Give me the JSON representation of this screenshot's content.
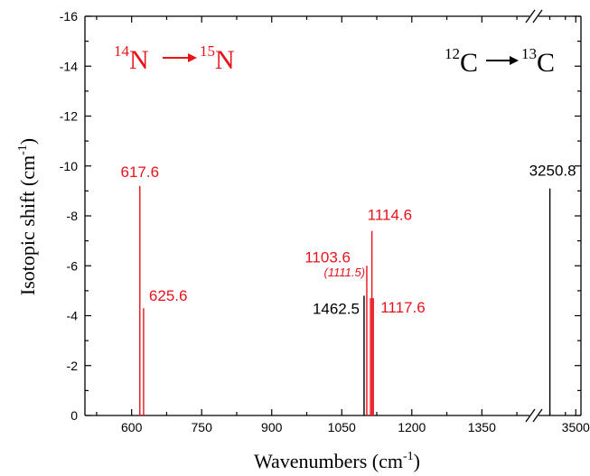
{
  "chart_data": {
    "type": "bar",
    "title": "",
    "xlabel": "Wavenumbers (cm",
    "xlabel_sup": "-1",
    "xlabel_close": ")",
    "ylabel": "Isotopic shift (cm",
    "ylabel_sup": "-1",
    "ylabel_close": ")",
    "ylim": [
      0,
      -16
    ],
    "y_ticks": [
      "0",
      "-2",
      "-4",
      "-6",
      "-8",
      "-10",
      "-12",
      "-14",
      "-16"
    ],
    "y_tick_values": [
      0,
      -2,
      -4,
      -6,
      -8,
      -10,
      -12,
      -14,
      -16
    ],
    "x_segments": [
      {
        "xlim": [
          500,
          1450
        ],
        "ticks": [
          600,
          750,
          900,
          1050,
          1200,
          1350
        ],
        "tick_labels": [
          "600",
          "750",
          "900",
          "1050",
          "1200",
          "1350"
        ]
      },
      {
        "xlim": [
          3150,
          3550
        ],
        "ticks": [
          3500
        ],
        "tick_labels": [
          "3500"
        ]
      }
    ],
    "axis_break": true,
    "series": [
      {
        "color": "#e8121b",
        "points": [
          {
            "x": 617.6,
            "y": -9.2,
            "label": "617.6"
          },
          {
            "x": 625.6,
            "y": -4.3,
            "label": "625.6"
          },
          {
            "x": 1103.6,
            "y": -6.0,
            "label": "1103.6"
          },
          {
            "x": 1111.5,
            "y": -4.7,
            "label": "(1111.5)"
          },
          {
            "x": 1114.6,
            "y": -7.4,
            "label": "1114.6"
          },
          {
            "x": 1117.6,
            "y": -4.7,
            "label": "1117.6"
          }
        ]
      },
      {
        "color": "#000000",
        "points": [
          {
            "x": 1462.5,
            "y": -4.8,
            "label": "1462.5"
          },
          {
            "x": 3250.8,
            "y": -9.1,
            "label": "3250.8"
          }
        ]
      }
    ],
    "annotations": {
      "nitrogen": {
        "from_sup": "14",
        "from_el": "N",
        "to_sup": "15",
        "to_el": "N",
        "color": "#e8121b"
      },
      "carbon": {
        "from_sup": "12",
        "from_el": "C",
        "to_sup": "13",
        "to_el": "C",
        "color": "#000000"
      }
    }
  }
}
